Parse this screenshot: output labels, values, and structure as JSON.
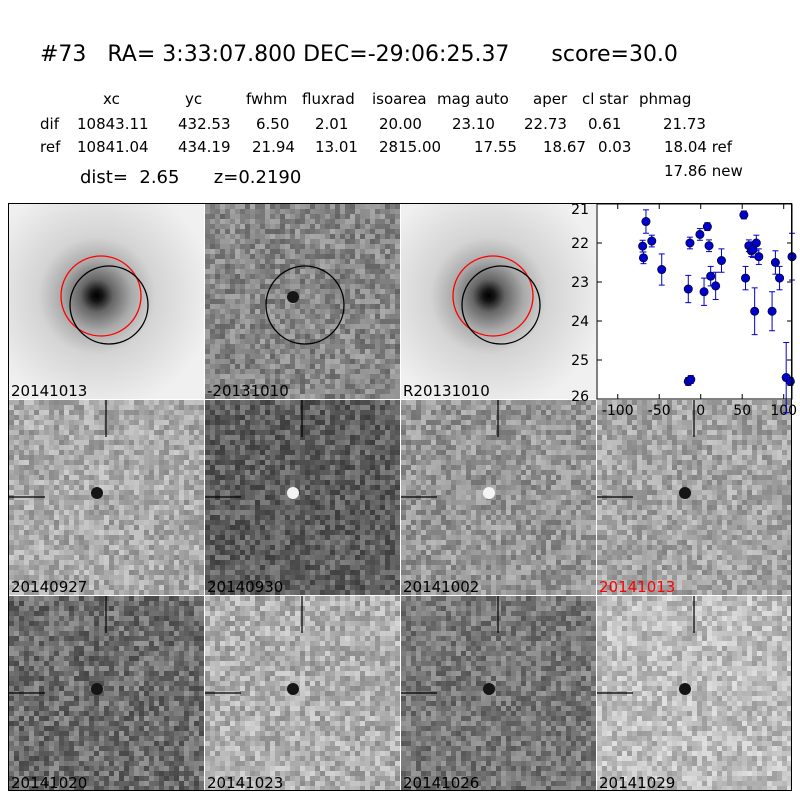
{
  "title": "#73   RA= 3:33:07.800 DEC=-29:06:25.37      score=30.0",
  "header": {
    "xc": "xc",
    "yc": "yc",
    "fwhm": "fwhm",
    "fluxrad": "fluxrad",
    "isoarea": "isoarea",
    "magauto": "mag auto",
    "aper": "aper",
    "clstar": "cl star",
    "phmag": "phmag"
  },
  "dif_row": {
    "label": "dif",
    "xc": "10843.11",
    "yc": "432.53",
    "fwhm": "6.50",
    "fluxrad": "2.01",
    "isoarea": "20.00",
    "magauto": "23.10",
    "aper": "22.73",
    "clstar": "0.61",
    "phmag": "21.73"
  },
  "ref_row": {
    "label": "ref",
    "xc": "10841.04",
    "yc": "434.19",
    "fwhm": "21.94",
    "fluxrad": "13.01",
    "isoarea": "2815.00",
    "magauto": "17.55",
    "aper": "18.67",
    "clstar": "0.03",
    "phmag": "18.04 ref"
  },
  "new_mag": "17.86 new",
  "dist_line": "dist=  2.65      z=0.2190",
  "panels": [
    {
      "label": "20141013",
      "kind": "galaxy",
      "circles": [
        "red",
        "black"
      ],
      "red_label": false
    },
    {
      "label": "-20131010",
      "kind": "diff",
      "circles": [
        "black"
      ],
      "red_label": false
    },
    {
      "label": "R20131010",
      "kind": "galaxy",
      "circles": [
        "red",
        "black"
      ],
      "red_label": false
    },
    {
      "label": "20140927",
      "kind": "stamp",
      "red_label": false
    },
    {
      "label": "20140930",
      "kind": "stamp",
      "red_label": false
    },
    {
      "label": "20141002",
      "kind": "stamp",
      "red_label": false
    },
    {
      "label": "20141013",
      "kind": "stamp",
      "red_label": true
    },
    {
      "label": "20141020",
      "kind": "stamp",
      "red_label": false
    },
    {
      "label": "20141023",
      "kind": "stamp",
      "red_label": false
    },
    {
      "label": "20141026",
      "kind": "stamp",
      "red_label": false
    },
    {
      "label": "20141029",
      "kind": "stamp",
      "red_label": false
    }
  ],
  "colors": {
    "circle_red": "#ff0000",
    "circle_black": "#000000",
    "points": "#0000cc",
    "label_red": "#ff0000"
  },
  "chart_data": {
    "type": "scatter",
    "title": "",
    "xlabel": "",
    "ylabel": "",
    "xlim": [
      -125,
      110
    ],
    "ylim": [
      26,
      21
    ],
    "y_inverted": true,
    "xticks": [
      -100,
      -50,
      0,
      50,
      100
    ],
    "yticks": [
      21,
      22,
      23,
      24,
      25,
      26
    ],
    "grid": false,
    "series": [
      {
        "x": [
          -70,
          -69,
          -66,
          -59,
          -47,
          -15,
          -15,
          -13,
          -12,
          -1,
          4,
          8,
          10,
          12,
          18,
          25,
          52,
          54,
          58,
          61,
          63,
          65,
          67,
          70,
          86,
          90,
          95,
          103,
          108,
          110
        ],
        "y": [
          22.08,
          22.38,
          21.45,
          21.95,
          22.68,
          23.18,
          25.55,
          22.0,
          25.5,
          21.78,
          23.25,
          21.58,
          22.07,
          22.85,
          23.1,
          22.45,
          21.28,
          22.9,
          22.07,
          22.2,
          22.17,
          23.75,
          22.0,
          22.35,
          23.75,
          22.5,
          22.9,
          25.45,
          25.55,
          22.35
        ],
        "yerr": [
          0.15,
          0.15,
          0.3,
          0.15,
          0.4,
          0.35,
          0.1,
          0.15,
          0.1,
          0.15,
          0.35,
          0.1,
          0.15,
          0.25,
          0.35,
          0.3,
          0.1,
          0.3,
          0.15,
          0.15,
          0.2,
          0.6,
          0.2,
          0.2,
          0.5,
          0.3,
          0.3,
          0.9,
          0.1,
          0.6
        ]
      }
    ]
  }
}
